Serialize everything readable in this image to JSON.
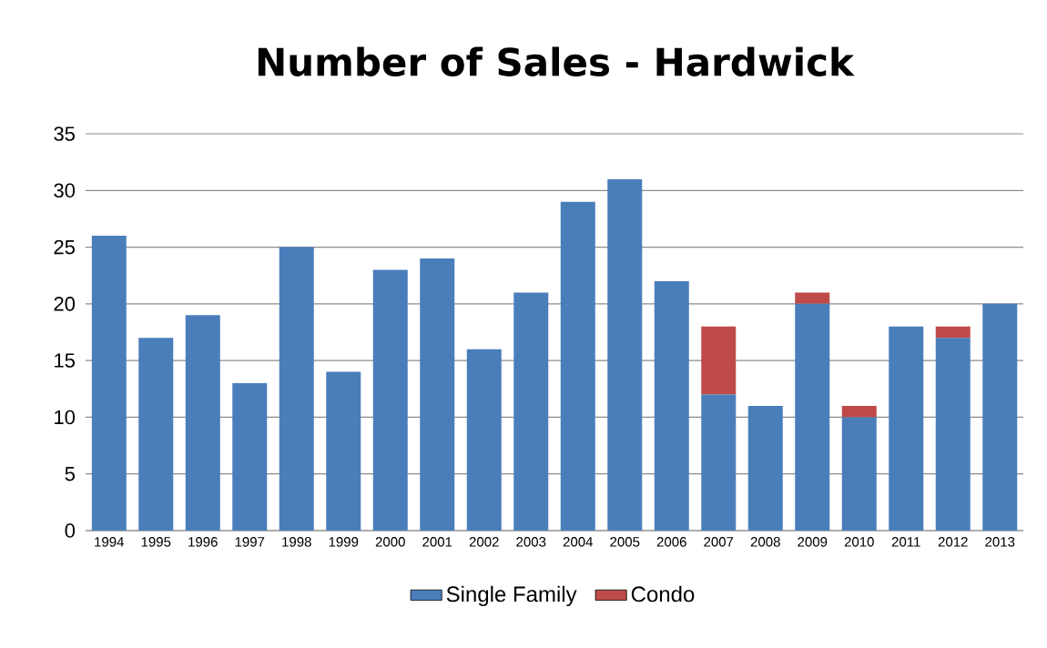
{
  "chart_data": {
    "type": "bar",
    "title": "Number of Sales - Hardwick",
    "stacked": true,
    "categories": [
      "1994",
      "1995",
      "1996",
      "1997",
      "1998",
      "1999",
      "2000",
      "2001",
      "2002",
      "2003",
      "2004",
      "2005",
      "2006",
      "2007",
      "2008",
      "2009",
      "2010",
      "2011",
      "2012",
      "2013"
    ],
    "series": [
      {
        "name": "Single Family",
        "color": "#4a7ebb",
        "values": [
          26,
          17,
          19,
          13,
          25,
          14,
          23,
          24,
          16,
          21,
          29,
          31,
          22,
          12,
          11,
          20,
          10,
          18,
          17,
          20
        ]
      },
      {
        "name": "Condo",
        "color": "#be4b48",
        "values": [
          0,
          0,
          0,
          0,
          0,
          0,
          0,
          0,
          0,
          0,
          0,
          0,
          0,
          6,
          0,
          1,
          1,
          0,
          1,
          0
        ]
      }
    ],
    "ylim": [
      0,
      35
    ],
    "yticks": [
      0,
      5,
      10,
      15,
      20,
      25,
      30,
      35
    ],
    "grid": "y",
    "legend": "bottom"
  }
}
